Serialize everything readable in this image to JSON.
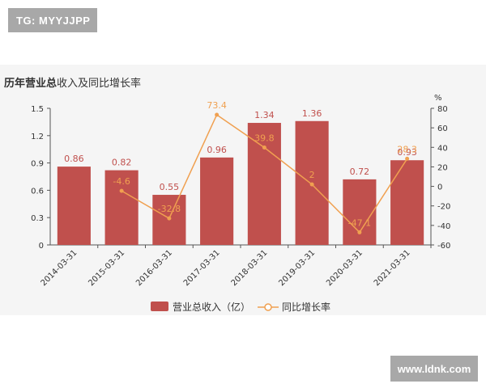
{
  "watermark_top": "TG: MYYJJPP",
  "watermark_bottom": "www.ldnk.com",
  "title_bold": "历年营业总",
  "title_normal": "收入及同比增长率",
  "colors": {
    "bar": "#c0504d",
    "bar_label": "#c0504d",
    "line": "#f0a050",
    "line_label": "#f0a050",
    "axis": "#555555",
    "panel": "#f5f5f5"
  },
  "chart_data": {
    "type": "bar",
    "categories": [
      "2014-03-31",
      "2015-03-31",
      "2016-03-31",
      "2017-03-31",
      "2018-03-31",
      "2019-03-31",
      "2020-03-31",
      "2021-03-31"
    ],
    "series": [
      {
        "name": "营业总收入（亿）",
        "type": "bar",
        "axis": "left",
        "values": [
          0.86,
          0.82,
          0.55,
          0.96,
          1.34,
          1.36,
          0.72,
          0.93
        ],
        "labels": [
          "0.86",
          "0.82",
          "0.55",
          "0.96",
          "1.34",
          "1.36",
          "0.72",
          "0.93"
        ]
      },
      {
        "name": "同比增长率",
        "type": "line",
        "axis": "right",
        "values": [
          null,
          -4.6,
          -32.8,
          73.4,
          39.8,
          2,
          -47.1,
          28.3
        ],
        "labels": [
          "",
          "-4.6",
          "-32.8",
          "73.4",
          "39.8",
          "2",
          "-47.1",
          "28.3"
        ]
      }
    ],
    "y_left": {
      "min": 0,
      "max": 1.5,
      "ticks": [
        "0",
        "0.3",
        "0.6",
        "0.9",
        "1.2",
        "1.5"
      ]
    },
    "y_right": {
      "min": -60,
      "max": 80,
      "unit": "%",
      "ticks": [
        "-60",
        "-40",
        "-20",
        "0",
        "20",
        "40",
        "60",
        "80"
      ]
    },
    "legend_position": "bottom"
  }
}
